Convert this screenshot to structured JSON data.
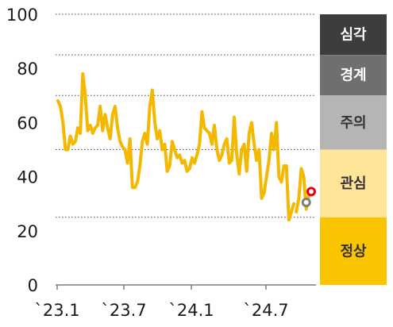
{
  "chart_data": {
    "type": "line",
    "title": "",
    "xlabel": "",
    "ylabel": "",
    "ylim": [
      0,
      100
    ],
    "y_ticks": [
      0,
      20,
      40,
      60,
      80,
      100
    ],
    "x_tick_labels": [
      "`23.1",
      "`23.7",
      "`24.1",
      "`24.7"
    ],
    "grid": "dotted horizontal lines at 25, 50, 70, 85, 100",
    "grid_levels": [
      25,
      50,
      70,
      85,
      100
    ],
    "series": [
      {
        "color": "#f5b800",
        "x": [
          0,
          1,
          2,
          3,
          4,
          5,
          6,
          7,
          8,
          9,
          10,
          11,
          12,
          13,
          14,
          15,
          16,
          17,
          18,
          19,
          20,
          21,
          22,
          23,
          24,
          25,
          26,
          27,
          28,
          29,
          30,
          31,
          32,
          33,
          34,
          35,
          36,
          37,
          38,
          39,
          40,
          41,
          42,
          43,
          44,
          45,
          46,
          47,
          48,
          49,
          50,
          51,
          52,
          53,
          54,
          55,
          56,
          57,
          58,
          59,
          60,
          61,
          62,
          63,
          64,
          65,
          66,
          67,
          68,
          69,
          70,
          71,
          72,
          73,
          74,
          75,
          76,
          77,
          78,
          79,
          80,
          81,
          82,
          83,
          84,
          85,
          86,
          87,
          88,
          89,
          90,
          91,
          92,
          93,
          94,
          95
        ],
        "values": [
          68,
          66,
          60,
          50,
          50,
          55,
          52,
          53,
          58,
          56,
          78,
          70,
          57,
          59,
          56,
          58,
          59,
          66,
          57,
          63,
          58,
          54,
          63,
          66,
          58,
          53,
          51,
          50,
          45,
          54,
          36,
          36,
          38,
          44,
          53,
          56,
          52,
          66,
          72,
          60,
          54,
          57,
          50,
          52,
          42,
          44,
          53,
          50,
          47,
          48,
          45,
          46,
          42,
          43,
          47,
          45,
          48,
          52,
          64,
          58,
          57,
          56,
          52,
          59,
          50,
          46,
          48,
          52,
          54,
          45,
          46,
          62,
          48,
          41,
          50,
          52,
          42,
          56,
          60,
          52,
          46,
          50,
          32,
          34,
          40,
          46,
          56,
          50,
          60,
          40,
          38,
          44,
          44,
          24,
          27,
          30
        ]
      },
      {
        "x": [
          96,
          97,
          98,
          99,
          100,
          101,
          102
        ],
        "color": "#f5b800",
        "values": [
          27,
          32,
          43,
          40,
          28,
          33,
          34
        ]
      }
    ],
    "markers": [
      {
        "x": 100,
        "y": 30.5,
        "color": "#7f7f7f"
      },
      {
        "x": 102,
        "y": 34.5,
        "color": "#e3001b"
      }
    ],
    "bands": [
      {
        "label": "심각",
        "from": 85,
        "to": 100,
        "color": "#3d3d3d",
        "text_color": "#ffffff"
      },
      {
        "label": "경계",
        "from": 70,
        "to": 85,
        "color": "#6f6f6f",
        "text_color": "#ffffff"
      },
      {
        "label": "주의",
        "from": 50,
        "to": 70,
        "color": "#b5b5b5",
        "text_color": "#333333"
      },
      {
        "label": "관심",
        "from": 25,
        "to": 50,
        "color": "#ffe59a",
        "text_color": "#333333"
      },
      {
        "label": "정상",
        "from": 0,
        "to": 25,
        "color": "#f9c400",
        "text_color": "#333333"
      }
    ]
  }
}
